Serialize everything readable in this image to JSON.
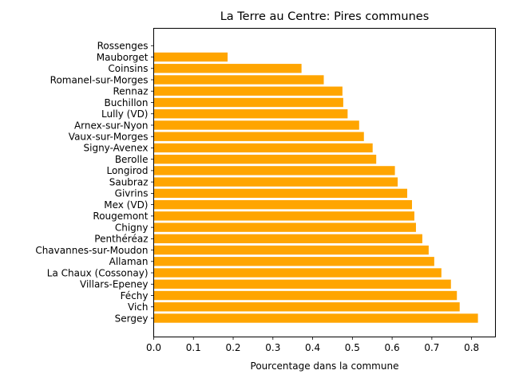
{
  "chart_data": {
    "type": "bar",
    "orientation": "horizontal",
    "title": "La Terre au Centre: Pires communes",
    "xlabel": "Pourcentage dans la commune",
    "ylabel": "",
    "xlim": [
      0,
      0.86
    ],
    "xticks": [
      0.0,
      0.1,
      0.2,
      0.3,
      0.4,
      0.5,
      0.6,
      0.7,
      0.8
    ],
    "xtick_labels": [
      "0.0",
      "0.1",
      "0.2",
      "0.3",
      "0.4",
      "0.5",
      "0.6",
      "0.7",
      "0.8"
    ],
    "bar_color": "#ffa500",
    "grid": false,
    "categories": [
      "Sergey",
      "Vich",
      "Féchy",
      "Villars-Epeney",
      "La Chaux (Cossonay)",
      "Allaman",
      "Chavannes-sur-Moudon",
      "Penthéréaz",
      "Chigny",
      "Rougemont",
      "Mex (VD)",
      "Givrins",
      "Saubraz",
      "Longirod",
      "Berolle",
      "Signy-Avenex",
      "Vaux-sur-Morges",
      "Arnex-sur-Nyon",
      "Lully (VD)",
      "Buchillon",
      "Rennaz",
      "Romanel-sur-Morges",
      "Coinsins",
      "Mauborget",
      "Rossenges"
    ],
    "values": [
      0.816,
      0.77,
      0.763,
      0.748,
      0.724,
      0.706,
      0.692,
      0.676,
      0.66,
      0.656,
      0.65,
      0.638,
      0.614,
      0.607,
      0.56,
      0.551,
      0.529,
      0.517,
      0.488,
      0.477,
      0.475,
      0.428,
      0.372,
      0.186,
      0.0
    ]
  }
}
